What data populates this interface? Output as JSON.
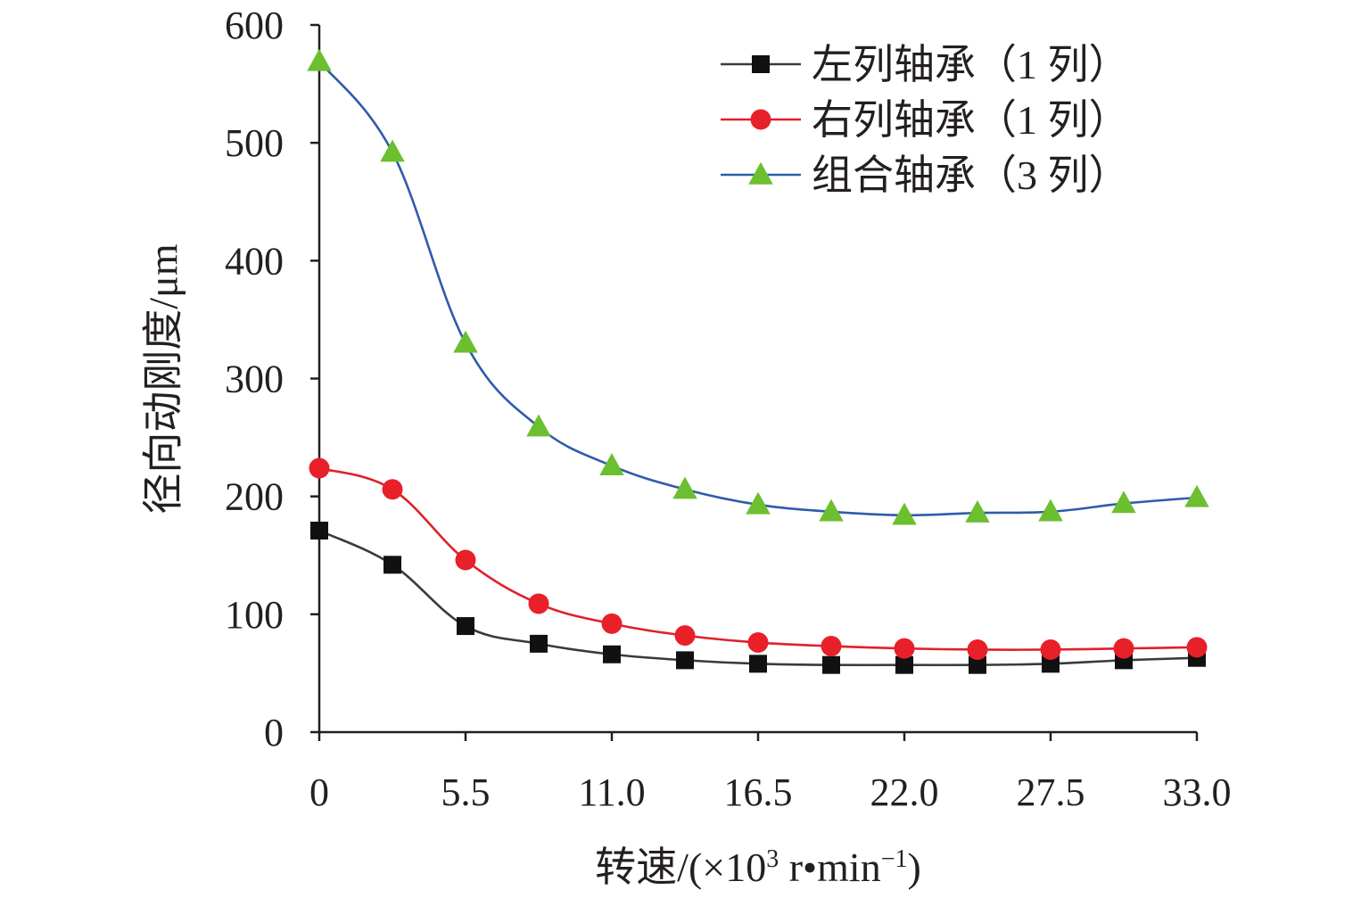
{
  "chart_data": {
    "type": "line",
    "title": "",
    "xlabel": "转速/(×10³ r•min⁻¹)",
    "xlabel_parts": {
      "main": "转速/(×10",
      "sup1": "3",
      "mid": " r•min",
      "sup2": "−1",
      "end": ")"
    },
    "ylabel": "径向动刚度/μm",
    "xlim": [
      0,
      33
    ],
    "ylim": [
      0,
      600
    ],
    "x_ticks": [
      0,
      5.5,
      11,
      16.5,
      22,
      27.5,
      33
    ],
    "x_tick_labels": [
      "0",
      "5.5",
      "11.0",
      "16.5",
      "22.0",
      "27.5",
      "33.0"
    ],
    "y_ticks": [
      0,
      100,
      200,
      300,
      400,
      500,
      600
    ],
    "y_tick_labels": [
      "0",
      "100",
      "200",
      "300",
      "400",
      "500",
      "600"
    ],
    "grid": false,
    "legend_position": "top-right",
    "x": [
      0,
      2.75,
      5.5,
      8.25,
      11,
      13.75,
      16.5,
      19.25,
      22,
      24.75,
      27.5,
      30.25,
      33
    ],
    "series": [
      {
        "name": "左列轴承（1 列）",
        "color": "#3a3a3a",
        "marker": "square",
        "marker_color": "#111111",
        "values": [
          171,
          142,
          90,
          75,
          66,
          61,
          58,
          57,
          57,
          57,
          58,
          61,
          63
        ]
      },
      {
        "name": "右列轴承（1 列）",
        "color": "#e0202a",
        "marker": "circle",
        "marker_color": "#e8202a",
        "values": [
          224,
          206,
          146,
          109,
          92,
          82,
          76,
          73,
          71,
          70,
          70,
          71,
          72
        ]
      },
      {
        "name": "组合轴承（3 列）",
        "color": "#2e5caa",
        "marker": "triangle",
        "marker_color": "#6cbf2e",
        "values": [
          569,
          492,
          330,
          259,
          226,
          206,
          193,
          187,
          184,
          186,
          187,
          194,
          199
        ]
      }
    ]
  }
}
